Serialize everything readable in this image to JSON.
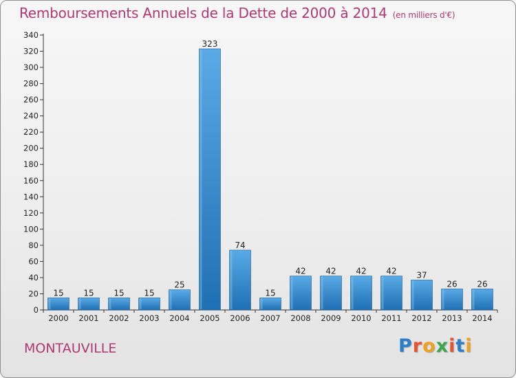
{
  "header": {
    "title": "Remboursements Annuels de la Dette de 2000 à 2014",
    "subtitle": "(en milliers d'€)"
  },
  "footer": {
    "commune": "MONTAUVILLE",
    "logo_text": "Proxiti",
    "logo_colors": [
      "#2e7fc8",
      "#e8522c",
      "#f0a020",
      "#3aa84a",
      "#e8522c",
      "#2e7fc8",
      "#f0a020"
    ]
  },
  "chart_data": {
    "type": "bar",
    "categories": [
      "2000",
      "2001",
      "2002",
      "2003",
      "2004",
      "2005",
      "2006",
      "2007",
      "2008",
      "2009",
      "2010",
      "2011",
      "2012",
      "2013",
      "2014"
    ],
    "values": [
      15,
      15,
      15,
      15,
      25,
      323,
      74,
      15,
      42,
      42,
      42,
      42,
      37,
      26,
      26
    ],
    "data_labels": [
      "15",
      "15",
      "15",
      "15",
      "25",
      "323",
      "74",
      "15",
      "42",
      "42",
      "42",
      "42",
      "37",
      "26",
      "26"
    ],
    "yticks": [
      0,
      20,
      40,
      60,
      80,
      100,
      120,
      140,
      160,
      180,
      200,
      220,
      240,
      260,
      280,
      300,
      320,
      340
    ],
    "ylim": [
      0,
      340
    ],
    "grid": false,
    "bar_color": "#3d8fd6",
    "bar_color_dark": "#1f6fb3"
  }
}
